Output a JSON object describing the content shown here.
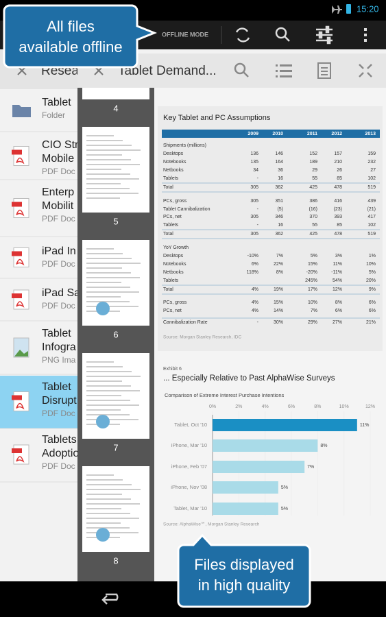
{
  "status_bar": {
    "time": "15:20"
  },
  "toolbar": {
    "mode": "OFFLINE MODE"
  },
  "callouts": [
    {
      "lines": [
        "All files",
        "available offline"
      ]
    },
    {
      "lines": [
        "Files displayed",
        "in high quality"
      ]
    }
  ],
  "list_pane": {
    "tab_title": "Resea",
    "items": [
      {
        "title": [
          "Tablet"
        ],
        "subtitle": "Folder"
      },
      {
        "title": [
          "CIO Str",
          "Mobile"
        ],
        "subtitle": "PDF Doc"
      },
      {
        "title": [
          "Enterp",
          "Mobilit"
        ],
        "subtitle": "PDF Doc"
      },
      {
        "title": [
          "iPad In"
        ],
        "subtitle": "PDF Doc"
      },
      {
        "title": [
          "iPad Sa"
        ],
        "subtitle": "PDF Doc"
      },
      {
        "title": [
          "Tablet",
          "Infogra"
        ],
        "subtitle": "PNG Ima"
      },
      {
        "title": [
          "Tablet",
          "Disrupt"
        ],
        "subtitle": "PDF Doc"
      },
      {
        "title": [
          "Tablets",
          "Adoptio"
        ],
        "subtitle": "PDF Doc"
      }
    ]
  },
  "viewer": {
    "tab_title": "Tablet Demand...",
    "thumbnails": [
      "4",
      "5",
      "6",
      "7",
      "8"
    ],
    "table": {
      "title": "Key Tablet and PC Assumptions",
      "columns": [
        "2009",
        "2010",
        "2011",
        "2012",
        "2013"
      ],
      "rows": [
        {
          "label": "Shipments (millions)"
        },
        {
          "label": "Desktops",
          "cells": [
            "136",
            "146",
            "152",
            "157",
            "159"
          ]
        },
        {
          "label": "Notebooks",
          "cells": [
            "135",
            "164",
            "189",
            "210",
            "232"
          ]
        },
        {
          "label": "Netbooks",
          "cells": [
            "34",
            "36",
            "29",
            "26",
            "27"
          ]
        },
        {
          "label": "Tablets",
          "cells": [
            "-",
            "16",
            "55",
            "85",
            "102"
          ]
        },
        {
          "label": "Total",
          "cells": [
            "305",
            "362",
            "425",
            "478",
            "519"
          ]
        },
        {
          "label": "PCs, gross",
          "cells": [
            "305",
            "351",
            "386",
            "416",
            "439"
          ]
        },
        {
          "label": "Tablet Cannibalization",
          "cells": [
            "-",
            "(5)",
            "(16)",
            "(23)",
            "(21)"
          ]
        },
        {
          "label": "PCs, net",
          "cells": [
            "305",
            "346",
            "370",
            "393",
            "417"
          ]
        },
        {
          "label": "Tablets",
          "cells": [
            "-",
            "16",
            "55",
            "85",
            "102"
          ]
        },
        {
          "label": "Total",
          "cells": [
            "305",
            "362",
            "425",
            "478",
            "519"
          ]
        },
        {
          "label": "YoY Growth"
        },
        {
          "label": "Desktops",
          "cells": [
            "-10%",
            "7%",
            "5%",
            "3%",
            "1%"
          ]
        },
        {
          "label": "Notebooks",
          "cells": [
            "6%",
            "22%",
            "15%",
            "11%",
            "10%"
          ]
        },
        {
          "label": "Netbooks",
          "cells": [
            "118%",
            "8%",
            "-20%",
            "-11%",
            "5%"
          ]
        },
        {
          "label": "Tablets",
          "cells": [
            null,
            null,
            "245%",
            "54%",
            "20%"
          ]
        },
        {
          "label": "Total",
          "cells": [
            "4%",
            "19%",
            "17%",
            "12%",
            "9%"
          ]
        },
        {
          "label": "PCs, gross",
          "cells": [
            "4%",
            "15%",
            "10%",
            "8%",
            "6%"
          ]
        },
        {
          "label": "PCs, net",
          "cells": [
            "4%",
            "14%",
            "7%",
            "6%",
            "6%"
          ]
        },
        {
          "label": "Cannibalization Rate",
          "cells": [
            "-",
            "30%",
            "29%",
            "27%",
            "21%"
          ]
        }
      ],
      "source": "Source: Morgan Stanley Research, IDC"
    },
    "exhibit": {
      "number": "Exhibit 6",
      "title": "... Especially Relative to Past AlphaWise Surveys",
      "subtitle": "Comparison of Extreme Interest Purchase Intentions",
      "categories": [
        "Tablet, Oct '10",
        "iPhone, Mar '10",
        "iPhone, Feb '07",
        "iPhone, Nov '08",
        "Tablet, Mar '10"
      ],
      "values": [
        11,
        8,
        7,
        5,
        5
      ],
      "value_labels": [
        "11%",
        "8%",
        "7%",
        "5%",
        "5%"
      ],
      "colors": [
        "#1a8fc4",
        "#a9dbe8",
        "#a9dbe8",
        "#a9dbe8",
        "#a9dbe8"
      ],
      "xlim": [
        0,
        12
      ],
      "xticks": [
        {
          "value": 0,
          "label": "0%"
        },
        {
          "value": 2,
          "label": "2%"
        },
        {
          "value": 4,
          "label": "4%"
        },
        {
          "value": 6,
          "label": "6%"
        },
        {
          "value": 8,
          "label": "8%"
        },
        {
          "value": 10,
          "label": "10%"
        },
        {
          "value": 12,
          "label": "12%"
        }
      ],
      "source": "Source: AlphaWise℠, Morgan Stanley Research"
    }
  }
}
